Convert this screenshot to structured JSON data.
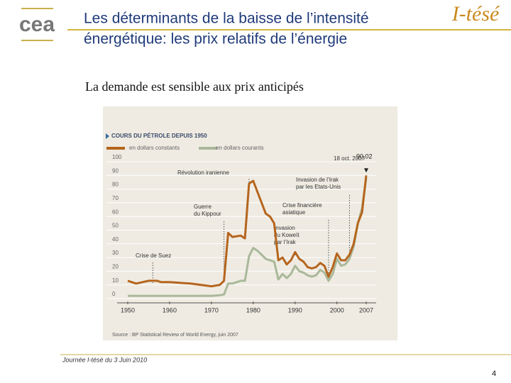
{
  "slide": {
    "logo": "cea",
    "brand": "I-tésé",
    "title_lines": [
      "Les déterminants de la baisse de l’intensité",
      "énergétique: les prix relatifs de l’énergie"
    ],
    "subtitle": "La demande est sensible aux prix anticipés",
    "footer": "Journée I-tésé du 3 Juin 2010",
    "page": "4"
  },
  "chart_data": {
    "type": "line",
    "title": "COURS DU PÉTROLE DEPUIS 1950",
    "x": [
      1950,
      1952,
      1955,
      1957,
      1958,
      1960,
      1965,
      1970,
      1972,
      1973,
      1974,
      1975,
      1977,
      1978,
      1979,
      1980,
      1981,
      1982,
      1983,
      1984,
      1985,
      1986,
      1987,
      1988,
      1989,
      1990,
      1991,
      1992,
      1993,
      1994,
      1995,
      1996,
      1997,
      1998,
      1999,
      2000,
      2001,
      2002,
      2003,
      2004,
      2005,
      2006,
      2007
    ],
    "series": [
      {
        "name": "en dollars constants",
        "color": "#b5651d",
        "values": [
          13,
          11,
          13,
          13,
          12,
          12,
          11,
          9,
          10,
          13,
          48,
          45,
          46,
          44,
          84,
          86,
          78,
          70,
          62,
          60,
          55,
          28,
          30,
          25,
          28,
          34,
          29,
          27,
          23,
          22,
          23,
          26,
          24,
          16,
          23,
          33,
          28,
          28,
          32,
          40,
          55,
          63,
          90.02
        ],
        "value_labels": [
          null,
          null,
          null,
          null,
          null,
          null,
          null,
          null,
          null,
          null,
          null,
          null,
          null,
          null,
          null,
          null,
          null,
          null,
          null,
          null,
          null,
          null,
          null,
          null,
          null,
          null,
          null,
          null,
          null,
          null,
          null,
          null,
          null,
          null,
          null,
          null,
          null,
          null,
          null,
          null,
          null,
          null,
          "90,02"
        ]
      },
      {
        "name": "en dollars courants",
        "color": "#a9b89a",
        "values": [
          2,
          2,
          2,
          2,
          2,
          2,
          2,
          2,
          2.5,
          3,
          11,
          11,
          13,
          13,
          31,
          37,
          35,
          32,
          29,
          28,
          27,
          14,
          18,
          15,
          18,
          24,
          20,
          19,
          17,
          16,
          17,
          21,
          19,
          13,
          18,
          29,
          24,
          25,
          29,
          38,
          55,
          66,
          88
        ]
      }
    ],
    "xlim": [
      1950,
      2007
    ],
    "xticks": [
      1950,
      1960,
      1970,
      1980,
      1990,
      2000,
      2007
    ],
    "ylim": [
      0,
      100
    ],
    "yticks": [
      0,
      10,
      20,
      30,
      40,
      50,
      60,
      70,
      80,
      90,
      100
    ],
    "grid": true,
    "annotations": [
      {
        "lines": [
          "Révolution iranienne"
        ]
      },
      {
        "lines": [
          "Guerre",
          "du Kippour"
        ]
      },
      {
        "lines": [
          "Crise de Suez"
        ]
      },
      {
        "lines": [
          "Invasion de l’Irak",
          "par les Etats-Unis"
        ]
      },
      {
        "lines": [
          "Crise financière",
          "asiatique"
        ]
      },
      {
        "lines": [
          "Invasion",
          "du Koweït",
          "par l’Irak"
        ]
      },
      {
        "lines": [
          "18 oct. 2007"
        ]
      }
    ],
    "source": "Source : BP Statistical Review of World Energy, juin 2007"
  }
}
